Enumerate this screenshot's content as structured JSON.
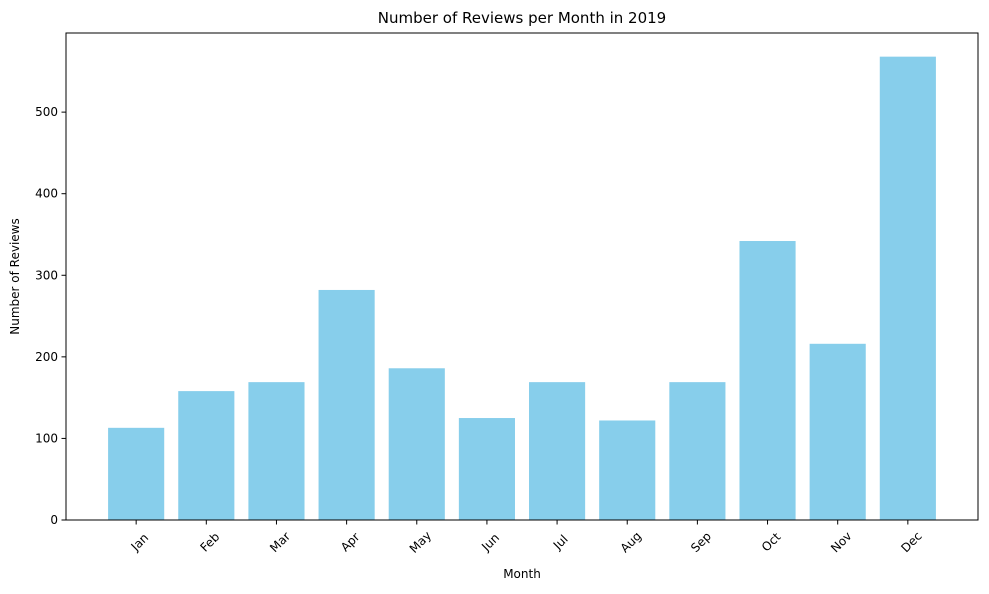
{
  "chart_data": {
    "type": "bar",
    "title": "Number of Reviews per Month in 2019",
    "xlabel": "Month",
    "ylabel": "Number of Reviews",
    "categories": [
      "Jan",
      "Feb",
      "Mar",
      "Apr",
      "May",
      "Jun",
      "Jul",
      "Aug",
      "Sep",
      "Oct",
      "Nov",
      "Dec"
    ],
    "values": [
      113,
      158,
      169,
      282,
      186,
      125,
      169,
      122,
      169,
      342,
      216,
      568
    ],
    "ylim": [
      0,
      597
    ],
    "yticks": [
      0,
      100,
      200,
      300,
      400,
      500
    ],
    "xtick_rotation": 45,
    "grid": false,
    "bar_color": "#87CEEB"
  }
}
